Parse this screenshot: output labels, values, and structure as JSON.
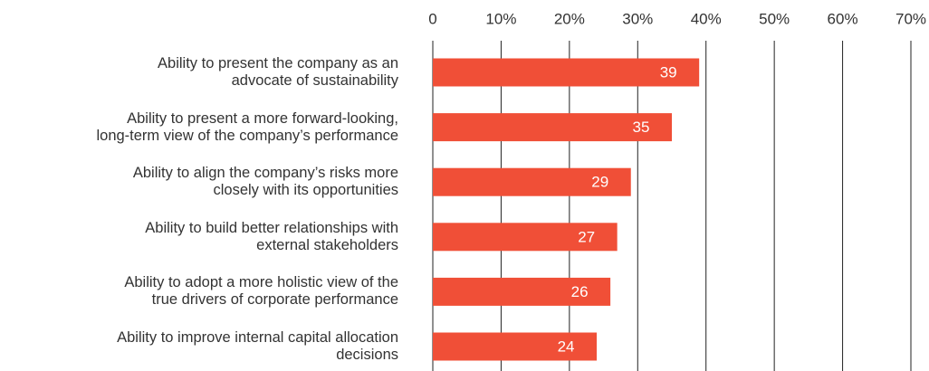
{
  "chart_data": {
    "type": "bar",
    "categories": [
      "Ability to present the company as an\nadvocate of sustainability",
      "Ability to present a more forward-looking,\nlong-term view of the company’s performance",
      "Ability to align the company’s risks more\nclosely with its opportunities",
      "Ability to build better relationships with\nexternal stakeholders",
      "Ability to adopt a more holistic view of the\ntrue drivers of corporate performance",
      "Ability to improve internal capital allocation\ndecisions"
    ],
    "values": [
      39,
      35,
      29,
      27,
      26,
      24
    ],
    "color": "#f04f37",
    "xlim": [
      0,
      70
    ],
    "xticks": [
      0,
      {
        "value": 10,
        "label": "10%"
      },
      {
        "value": 20,
        "label": "20%"
      },
      {
        "value": 30,
        "label": "30%"
      },
      {
        "value": 40,
        "label": "40%"
      },
      {
        "value": 50,
        "label": "50%"
      },
      {
        "value": 60,
        "label": "60%"
      },
      {
        "value": 70,
        "label": "70%"
      }
    ],
    "grid": true
  }
}
